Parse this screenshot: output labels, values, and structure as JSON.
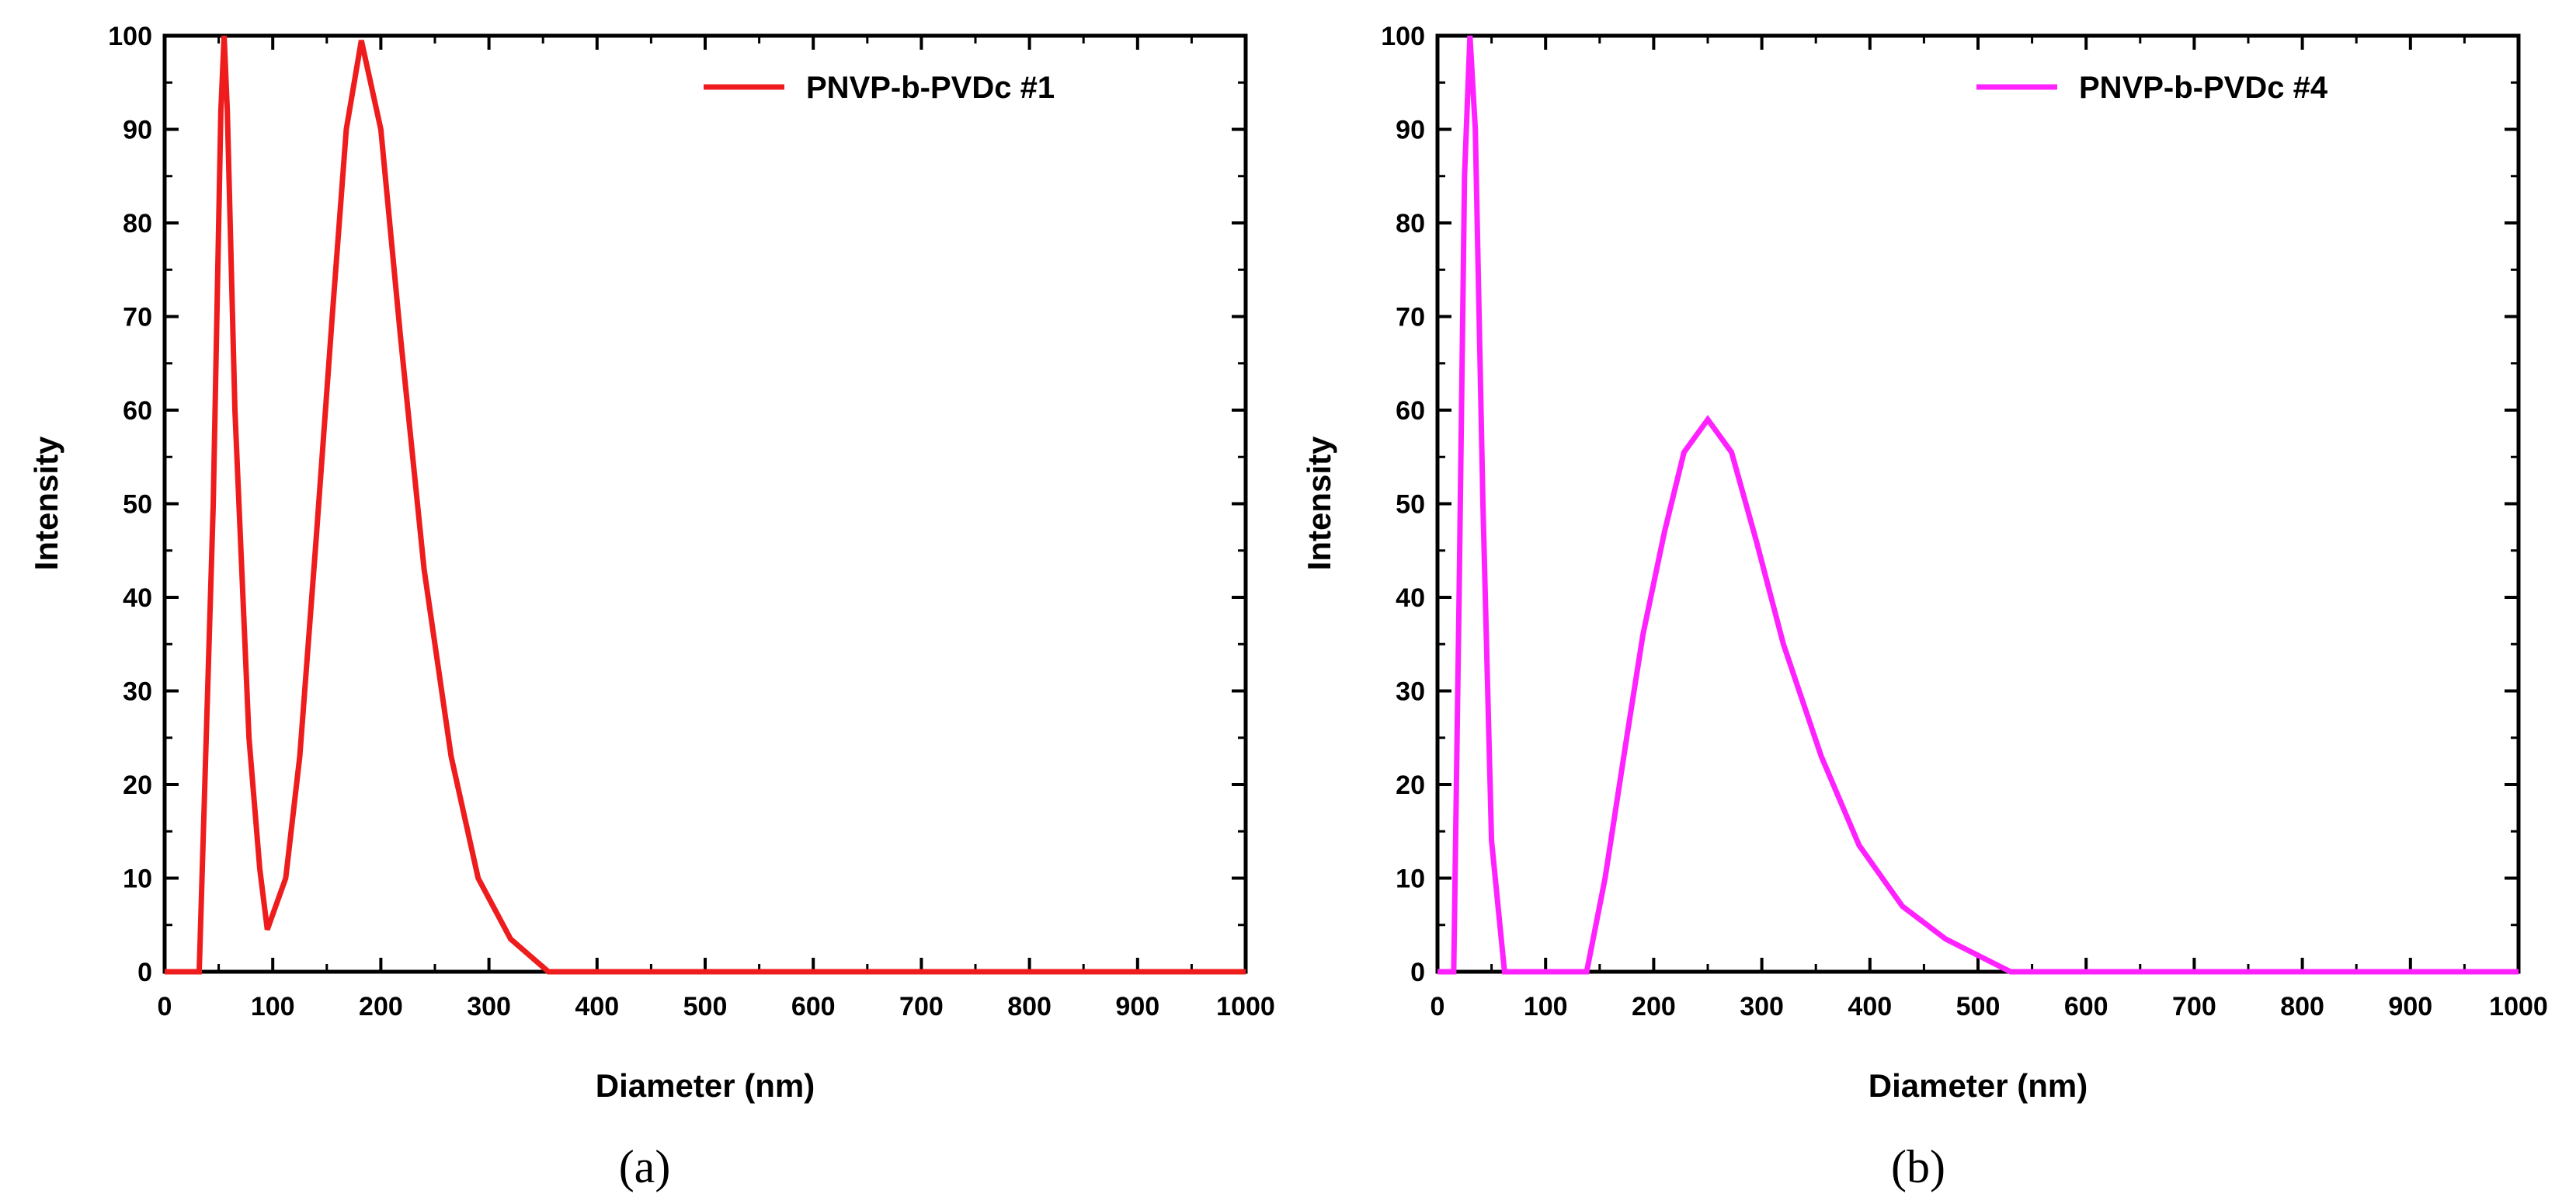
{
  "chart_data": [
    {
      "type": "line",
      "panel_label": "(a)",
      "xlabel": "Diameter (nm)",
      "ylabel": "Intensity",
      "xlim": [
        0,
        1000
      ],
      "ylim": [
        0,
        100
      ],
      "x_ticks": [
        0,
        100,
        200,
        300,
        400,
        500,
        600,
        700,
        800,
        900,
        1000
      ],
      "y_ticks": [
        0,
        10,
        20,
        30,
        40,
        50,
        60,
        70,
        80,
        90,
        100
      ],
      "legend_position": "top-right",
      "series": [
        {
          "name": "PNVP-b-PVDc #1",
          "color": "#ee1c1c",
          "x": [
            0,
            30,
            32,
            45,
            52,
            55,
            58,
            65,
            78,
            88,
            95,
            112,
            125,
            140,
            155,
            168,
            182,
            200,
            218,
            240,
            265,
            290,
            320,
            355,
            400,
            500,
            600,
            700,
            800,
            900,
            1000
          ],
          "y": [
            0,
            0,
            0,
            50,
            92,
            100,
            92,
            60,
            25,
            11,
            4.5,
            10,
            23,
            46,
            70,
            90,
            99.5,
            90,
            68,
            43,
            23,
            10,
            3.5,
            0,
            0,
            0,
            0,
            0,
            0,
            0,
            0
          ]
        }
      ]
    },
    {
      "type": "line",
      "panel_label": "(b)",
      "xlabel": "Diameter (nm)",
      "ylabel": "Intensity",
      "xlim": [
        0,
        1000
      ],
      "ylim": [
        0,
        100
      ],
      "x_ticks": [
        0,
        100,
        200,
        300,
        400,
        500,
        600,
        700,
        800,
        900,
        1000
      ],
      "y_ticks": [
        0,
        10,
        20,
        30,
        40,
        50,
        60,
        70,
        80,
        90,
        100
      ],
      "legend_position": "top-right",
      "series": [
        {
          "name": "PNVP-b-PVDc #4",
          "color": "#ff22ff",
          "x": [
            0,
            15,
            20,
            25,
            30,
            35,
            42,
            50,
            62,
            100,
            138,
            155,
            175,
            190,
            210,
            228,
            250,
            272,
            295,
            320,
            355,
            390,
            430,
            470,
            530,
            600,
            700,
            800,
            900,
            1000
          ],
          "y": [
            0,
            0,
            40,
            85,
            100,
            90,
            50,
            14,
            0,
            0,
            0,
            10,
            25,
            36,
            47,
            55.5,
            59,
            55.5,
            46,
            35,
            23,
            13.5,
            7,
            3.5,
            0,
            0,
            0,
            0,
            0,
            0
          ]
        }
      ]
    }
  ]
}
